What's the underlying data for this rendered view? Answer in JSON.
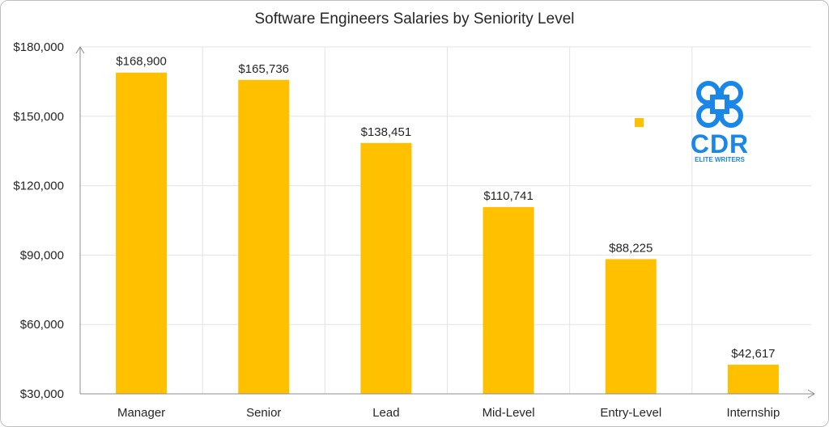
{
  "chart_data": {
    "type": "bar",
    "title": "Software Engineers Salaries by Seniority Level",
    "categories": [
      "Manager",
      "Senior",
      "Lead",
      "Mid-Level",
      "Entry-Level",
      "Internship"
    ],
    "values": [
      168900,
      165736,
      138451,
      110741,
      88225,
      42617
    ],
    "data_labels": [
      "$168,900",
      "$165,736",
      "$138,451",
      "$110,741",
      "$88,225",
      "$42,617"
    ],
    "y_ticks": [
      30000,
      60000,
      90000,
      120000,
      150000,
      180000
    ],
    "y_tick_labels": [
      "$30,000",
      "$60,000",
      "$90,000",
      "$120,000",
      "$150,000",
      "$180,000"
    ],
    "ylim": [
      30000,
      180000
    ],
    "xlabel": "",
    "ylabel": "",
    "grid": true,
    "bar_color": "#ffc000"
  },
  "logo": {
    "name": "CDR",
    "tagline": "ELITE WRITERS",
    "icon": "cmd-knot-icon",
    "color": "#1a86e8"
  }
}
